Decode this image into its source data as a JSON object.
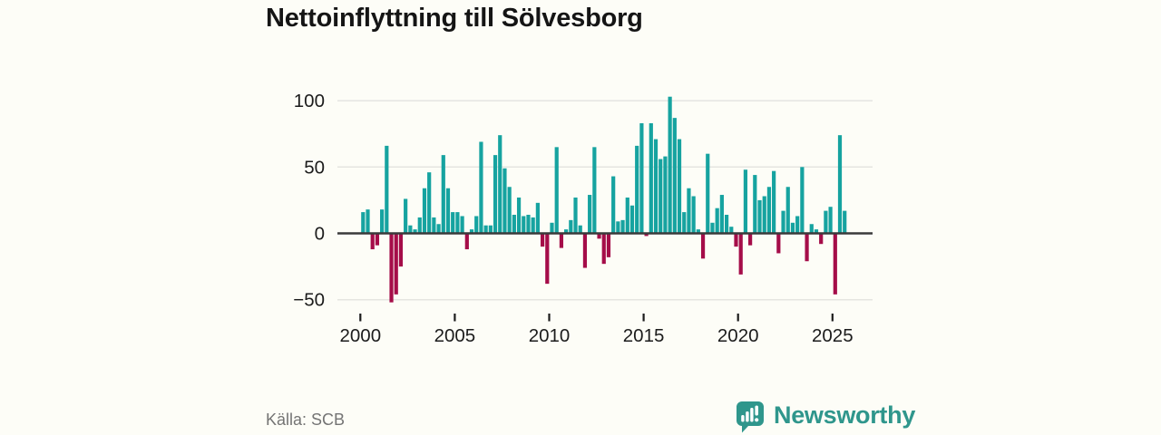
{
  "title": "Nettoinflyttning till Sölvesborg",
  "source": {
    "label": "Källa: SCB"
  },
  "brand": {
    "name": "Newsworthy",
    "color": "#2f968c",
    "icon": "speech-bubble-bar-chart"
  },
  "colors": {
    "background": "#fdfdf7",
    "positive": "#16a3a0",
    "negative": "#a50d49",
    "grid": "#e5e5e1",
    "axis": "#3a3a3a",
    "labels": "#1c1c1c",
    "muted": "#747474"
  },
  "chart_data": {
    "type": "bar",
    "title": "Nettoinflyttning till Sölvesborg",
    "frequency": "quarterly",
    "x_start_year": 2000,
    "x_start_quarter": 1,
    "values": [
      16,
      18,
      -12,
      -9,
      18,
      66,
      -52,
      -46,
      -25,
      26,
      6,
      3,
      12,
      34,
      46,
      12,
      7,
      59,
      34,
      16,
      16,
      13,
      -12,
      3,
      13,
      69,
      6,
      6,
      59,
      74,
      49,
      35,
      14,
      27,
      13,
      14,
      12,
      23,
      -10,
      -38,
      8,
      65,
      -11,
      3,
      10,
      27,
      6,
      -26,
      29,
      65,
      -4,
      -23,
      -18,
      43,
      9,
      10,
      27,
      21,
      66,
      83,
      -2,
      83,
      71,
      56,
      58,
      103,
      87,
      71,
      16,
      34,
      28,
      3,
      -19,
      60,
      8,
      19,
      29,
      14,
      5,
      -10,
      -31,
      48,
      -9,
      44,
      25,
      28,
      35,
      47,
      -15,
      17,
      35,
      8,
      13,
      50,
      -21,
      7,
      3,
      -8,
      17,
      20,
      -46,
      74,
      17
    ],
    "x_tick_years": [
      2000,
      2005,
      2010,
      2015,
      2020,
      2025
    ],
    "y_ticks": [
      {
        "value": 100,
        "label": "100"
      },
      {
        "value": 50,
        "label": "50"
      },
      {
        "value": 0,
        "label": "0"
      },
      {
        "value": -50,
        "label": "−50"
      }
    ],
    "ylim": [
      -62,
      112
    ],
    "grid": true,
    "legend": "none",
    "positive_color": "#16a3a0",
    "negative_color": "#a50d49",
    "grid_color": "#e5e5e1",
    "axis_color": "#3a3a3a",
    "label_color": "#1c1c1c"
  }
}
